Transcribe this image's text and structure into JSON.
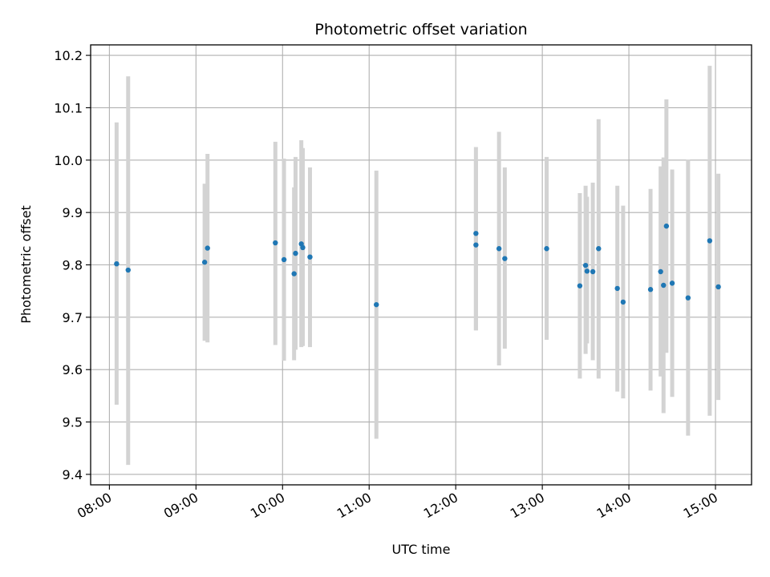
{
  "chart_data": {
    "type": "scatter",
    "title": "Photometric offset variation",
    "xlabel": "UTC time",
    "ylabel": "Photometric offset",
    "x_tick_labels": [
      "08:00",
      "09:00",
      "10:00",
      "11:00",
      "12:00",
      "13:00",
      "14:00",
      "15:00"
    ],
    "y_tick_labels": [
      "9.4",
      "9.5",
      "9.6",
      "9.7",
      "9.8",
      "9.9",
      "10.0",
      "10.1",
      "10.2"
    ],
    "xlim": [
      "07:47",
      "15:25"
    ],
    "ylim": [
      9.38,
      10.22
    ],
    "grid": true,
    "marker_color": "#1f77b4",
    "errorbar_color": "#d3d3d3",
    "points": [
      {
        "x": "08:05",
        "y": 9.802,
        "ylow": 9.533,
        "yhigh": 10.072
      },
      {
        "x": "08:13",
        "y": 9.79,
        "ylow": 9.418,
        "yhigh": 10.16
      },
      {
        "x": "09:06",
        "y": 9.805,
        "ylow": 9.655,
        "yhigh": 9.955
      },
      {
        "x": "09:08",
        "y": 9.832,
        "ylow": 9.652,
        "yhigh": 10.012
      },
      {
        "x": "09:55",
        "y": 9.842,
        "ylow": 9.647,
        "yhigh": 10.035
      },
      {
        "x": "10:01",
        "y": 9.81,
        "ylow": 9.617,
        "yhigh": 10.003
      },
      {
        "x": "10:08",
        "y": 9.783,
        "ylow": 9.618,
        "yhigh": 9.948
      },
      {
        "x": "10:09",
        "y": 9.822,
        "ylow": 9.638,
        "yhigh": 10.006
      },
      {
        "x": "10:13",
        "y": 9.84,
        "ylow": 9.643,
        "yhigh": 10.038
      },
      {
        "x": "10:14",
        "y": 9.833,
        "ylow": 9.645,
        "yhigh": 10.023
      },
      {
        "x": "10:19",
        "y": 9.815,
        "ylow": 9.643,
        "yhigh": 9.986
      },
      {
        "x": "11:05",
        "y": 9.724,
        "ylow": 9.468,
        "yhigh": 9.98
      },
      {
        "x": "12:14",
        "y": 9.86,
        "ylow": 9.675,
        "yhigh": 10.025
      },
      {
        "x": "12:14",
        "y": 9.838,
        "ylow": 9.675,
        "yhigh": 10.0
      },
      {
        "x": "12:30",
        "y": 9.831,
        "ylow": 9.608,
        "yhigh": 10.054
      },
      {
        "x": "12:34",
        "y": 9.812,
        "ylow": 9.64,
        "yhigh": 9.986
      },
      {
        "x": "13:03",
        "y": 9.831,
        "ylow": 9.657,
        "yhigh": 10.006
      },
      {
        "x": "13:26",
        "y": 9.76,
        "ylow": 9.583,
        "yhigh": 9.937
      },
      {
        "x": "13:30",
        "y": 9.799,
        "ylow": 9.63,
        "yhigh": 9.951
      },
      {
        "x": "13:31",
        "y": 9.788,
        "ylow": 9.65,
        "yhigh": 9.93
      },
      {
        "x": "13:35",
        "y": 9.787,
        "ylow": 9.618,
        "yhigh": 9.957
      },
      {
        "x": "13:39",
        "y": 9.831,
        "ylow": 9.583,
        "yhigh": 10.078
      },
      {
        "x": "13:52",
        "y": 9.755,
        "ylow": 9.558,
        "yhigh": 9.951
      },
      {
        "x": "13:56",
        "y": 9.729,
        "ylow": 9.545,
        "yhigh": 9.913
      },
      {
        "x": "14:15",
        "y": 9.753,
        "ylow": 9.56,
        "yhigh": 9.945
      },
      {
        "x": "14:22",
        "y": 9.787,
        "ylow": 9.587,
        "yhigh": 9.988
      },
      {
        "x": "14:24",
        "y": 9.761,
        "ylow": 9.517,
        "yhigh": 10.005
      },
      {
        "x": "14:26",
        "y": 9.874,
        "ylow": 9.632,
        "yhigh": 10.116
      },
      {
        "x": "14:30",
        "y": 9.765,
        "ylow": 9.548,
        "yhigh": 9.982
      },
      {
        "x": "14:41",
        "y": 9.737,
        "ylow": 9.474,
        "yhigh": 10.001
      },
      {
        "x": "14:56",
        "y": 9.846,
        "ylow": 9.512,
        "yhigh": 10.18
      },
      {
        "x": "15:02",
        "y": 9.758,
        "ylow": 9.542,
        "yhigh": 9.974
      }
    ]
  }
}
